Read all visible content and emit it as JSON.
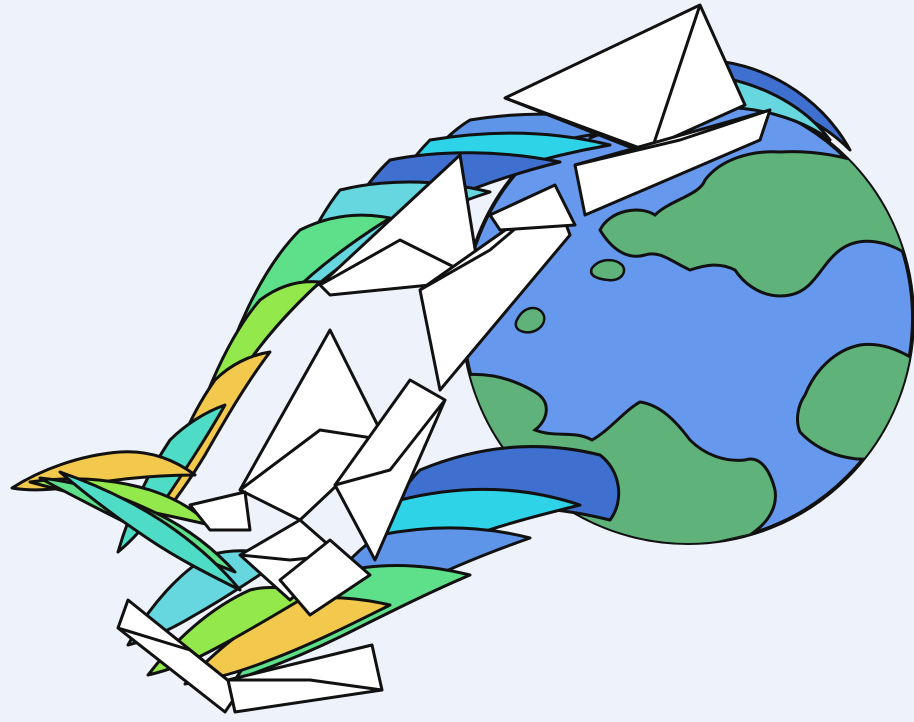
{
  "illustration": {
    "subject": "",
    "colors": {
      "background": "#eef2fb",
      "ocean": "#6699ee",
      "land": "#5fb37a",
      "outline": "#111111",
      "envelope": "#ffffff",
      "stream_palette": [
        "#3f6fcf",
        "#5f95e8",
        "#66d6df",
        "#4fdcc6",
        "#5ee08a",
        "#93e84c",
        "#f2c94c",
        "#2fd3e8"
      ]
    },
    "icons": [
      "globe-icon",
      "envelope-icon",
      "stream-ribbon"
    ]
  }
}
